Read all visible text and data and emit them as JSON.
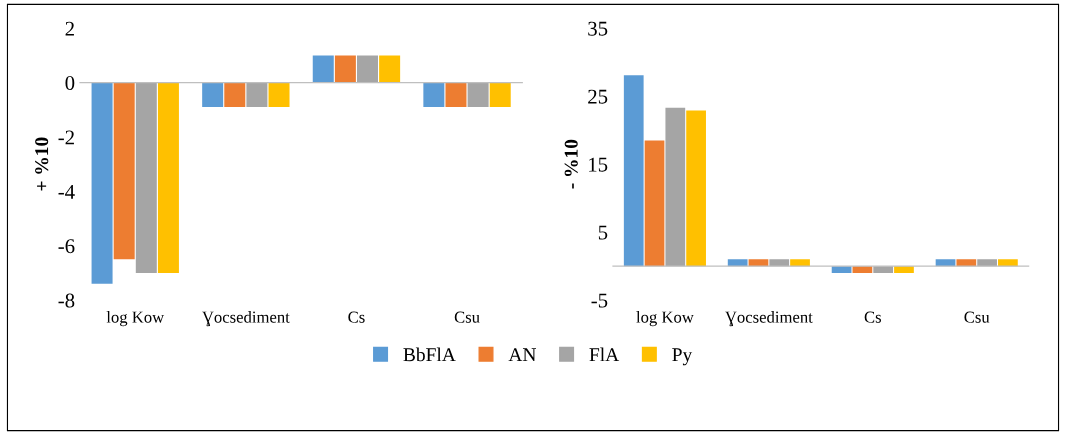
{
  "chart_data": [
    {
      "type": "bar",
      "ylabel": "+ %10",
      "categories": [
        "log Kow",
        "Ɣocsediment",
        "Cs",
        "Csu"
      ],
      "ylim": [
        -8,
        2
      ],
      "yticks": [
        -8,
        -6,
        -4,
        -2,
        0,
        2
      ],
      "legend": "bottom",
      "series": [
        {
          "name": "BbFlA",
          "color": "#5b9bd5",
          "values": [
            -7.4,
            -0.9,
            1.0,
            -0.9
          ]
        },
        {
          "name": "AN",
          "color": "#ed7d31",
          "values": [
            -6.5,
            -0.9,
            1.0,
            -0.9
          ]
        },
        {
          "name": "FlA",
          "color": "#a5a5a5",
          "values": [
            -7.0,
            -0.9,
            1.0,
            -0.9
          ]
        },
        {
          "name": "Py",
          "color": "#ffc000",
          "values": [
            -7.0,
            -0.9,
            1.0,
            -0.9
          ]
        }
      ]
    },
    {
      "type": "bar",
      "ylabel": "- %10",
      "categories": [
        "log Kow",
        "Ɣocsediment",
        "Cs",
        "Csu"
      ],
      "ylim": [
        -5,
        35
      ],
      "yticks": [
        -5,
        5,
        15,
        25,
        35
      ],
      "legend": false,
      "series": [
        {
          "name": "BbFlA",
          "color": "#5b9bd5",
          "values": [
            28.1,
            1.0,
            -1.0,
            1.0
          ]
        },
        {
          "name": "AN",
          "color": "#ed7d31",
          "values": [
            18.5,
            1.0,
            -1.0,
            1.0
          ]
        },
        {
          "name": "FlA",
          "color": "#a5a5a5",
          "values": [
            23.3,
            1.0,
            -1.0,
            1.0
          ]
        },
        {
          "name": "Py",
          "color": "#ffc000",
          "values": [
            22.9,
            1.0,
            -1.0,
            1.0
          ]
        }
      ]
    }
  ]
}
